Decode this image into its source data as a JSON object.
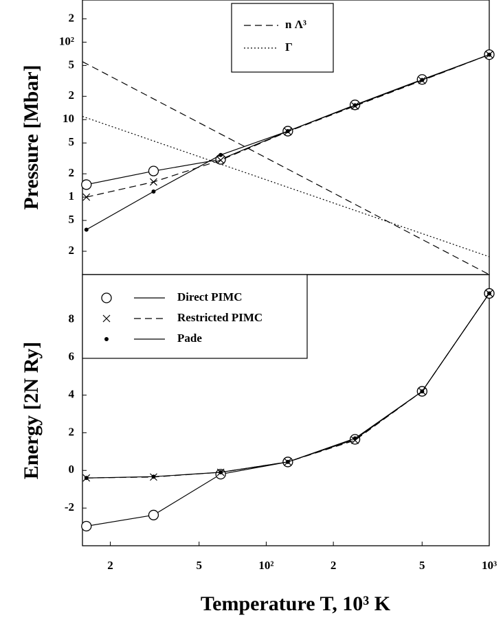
{
  "chart_data": [
    {
      "type": "line",
      "y_label": "Pressure [Mbar]",
      "xlog": true,
      "ylog": true,
      "legend": "upper center",
      "x": [
        15.625,
        31.25,
        62.5,
        125,
        250,
        500,
        1000
      ],
      "xlim": [
        15,
        1000
      ],
      "ylim": [
        0.1,
        350
      ],
      "yticks": [
        {
          "value": 0.2,
          "label": "2"
        },
        {
          "value": 0.5,
          "label": "5"
        },
        1,
        2,
        5,
        10,
        {
          "value": 20,
          "label": "2"
        },
        {
          "value": 50,
          "label": "5"
        },
        {
          "value": 100,
          "label": "10²"
        },
        {
          "value": 200,
          "label": "2"
        }
      ],
      "series": [
        {
          "name": "n Λ³",
          "color": "#000000",
          "style": "dashed",
          "marker": "none",
          "x": [
            15,
            1000
          ],
          "values": [
            56,
            0.1
          ]
        },
        {
          "name": "Γ",
          "color": "#000000",
          "style": "dotted",
          "marker": "none",
          "x": [
            15,
            1000
          ],
          "values": [
            11,
            0.17
          ]
        },
        {
          "color": "#000000",
          "style": "solid",
          "marker": "circle",
          "values": [
            1.45,
            2.17,
            3.07,
            7.1,
            15.5,
            33,
            69
          ]
        },
        {
          "color": "#000000",
          "style": "dashed",
          "marker": "x",
          "values": [
            1.0,
            1.57,
            3.0,
            7.0,
            15,
            32,
            69
          ]
        },
        {
          "color": "#000000",
          "style": "solid",
          "marker": "dot",
          "values": [
            0.38,
            1.18,
            3.5,
            7.1,
            15.3,
            32.5,
            69
          ]
        }
      ]
    },
    {
      "type": "line",
      "x_label": "Temperature T, 10³ K",
      "y_label": "Energy [2N Ry]",
      "xlog": true,
      "ylog": false,
      "legend": "upper left",
      "x": [
        15.625,
        31.25,
        62.5,
        125,
        250,
        500,
        1000
      ],
      "xlim": [
        15,
        1000
      ],
      "ylim": [
        -4,
        10.4
      ],
      "xticks": [
        {
          "value": 20,
          "label": "2"
        },
        {
          "value": 50,
          "label": "5"
        },
        {
          "value": 100,
          "label": "10²"
        },
        {
          "value": 200,
          "label": "2"
        },
        {
          "value": 500,
          "label": "5"
        },
        {
          "value": 1000,
          "label": "10³"
        }
      ],
      "yticks": [
        -2,
        0,
        2,
        4,
        6,
        8
      ],
      "series": [
        {
          "name": "Direct PIMC",
          "color": "#000000",
          "style": "solid",
          "marker": "circle",
          "values": [
            -2.96,
            -2.37,
            -0.2,
            0.45,
            1.65,
            4.2,
            9.4
          ]
        },
        {
          "name": "Restricted PIMC",
          "color": "#000000",
          "style": "dashed",
          "marker": "x",
          "values": [
            -0.4,
            -0.35,
            -0.1,
            0.45,
            1.6,
            4.2,
            9.4
          ]
        },
        {
          "name": "Pade",
          "color": "#000000",
          "style": "solid",
          "marker": "dot",
          "values": [
            -0.4,
            -0.33,
            -0.1,
            0.45,
            1.7,
            4.2,
            9.4
          ]
        }
      ]
    }
  ]
}
